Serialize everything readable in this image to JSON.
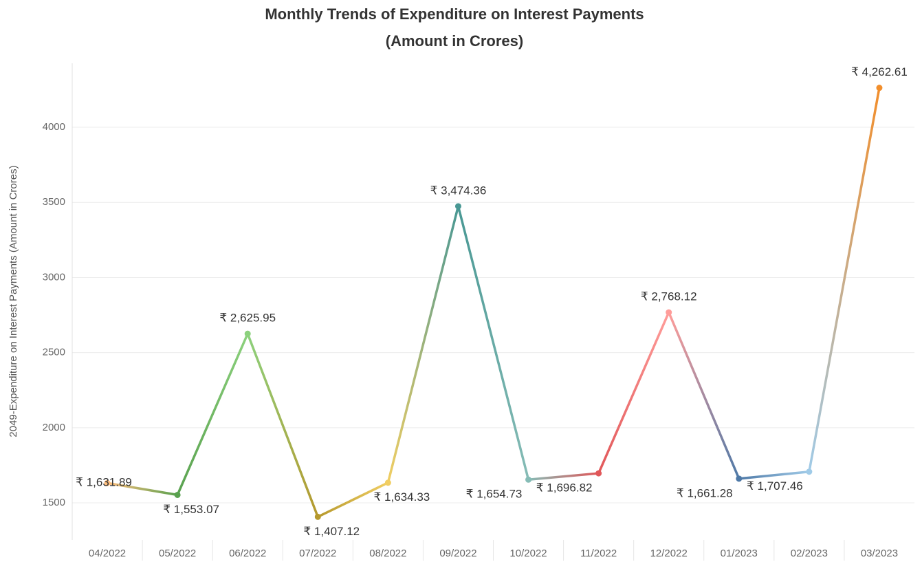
{
  "chart_data": {
    "type": "line",
    "title": "Monthly Trends of Expenditure on Interest Payments",
    "subtitle": "(Amount in Crores)",
    "y_label": "2049-Expenditure on Interest Payments  (Amount in Crores)",
    "categories": [
      "04/2022",
      "05/2022",
      "06/2022",
      "07/2022",
      "08/2022",
      "09/2022",
      "10/2022",
      "11/2022",
      "12/2022",
      "01/2023",
      "02/2023",
      "03/2023"
    ],
    "values": [
      1631.89,
      1553.07,
      2625.95,
      1407.12,
      1634.33,
      3474.36,
      1654.73,
      1696.82,
      2768.12,
      1661.28,
      1707.46,
      4262.61
    ],
    "value_labels": [
      "₹ 1,631.89",
      "₹ 1,553.07",
      "₹ 2,625.95",
      "₹ 1,407.12",
      "₹ 1,634.33",
      "₹ 3,474.36",
      "₹ 1,654.73",
      "₹ 1,696.82",
      "₹ 2,768.12",
      "₹ 1,661.28",
      "₹ 1,707.46",
      "₹ 4,262.61"
    ],
    "point_colors": [
      "#ffbe7d",
      "#59a14f",
      "#8cd17d",
      "#b6992d",
      "#f1ce63",
      "#499894",
      "#86bcb6",
      "#e15759",
      "#ff9d9a",
      "#4e79a7",
      "#a0cbe8",
      "#f28e2b"
    ],
    "ylim": [
      1253,
      4426
    ],
    "yticks": [
      1500,
      2000,
      2500,
      3000,
      3500,
      4000
    ],
    "grid": true
  }
}
